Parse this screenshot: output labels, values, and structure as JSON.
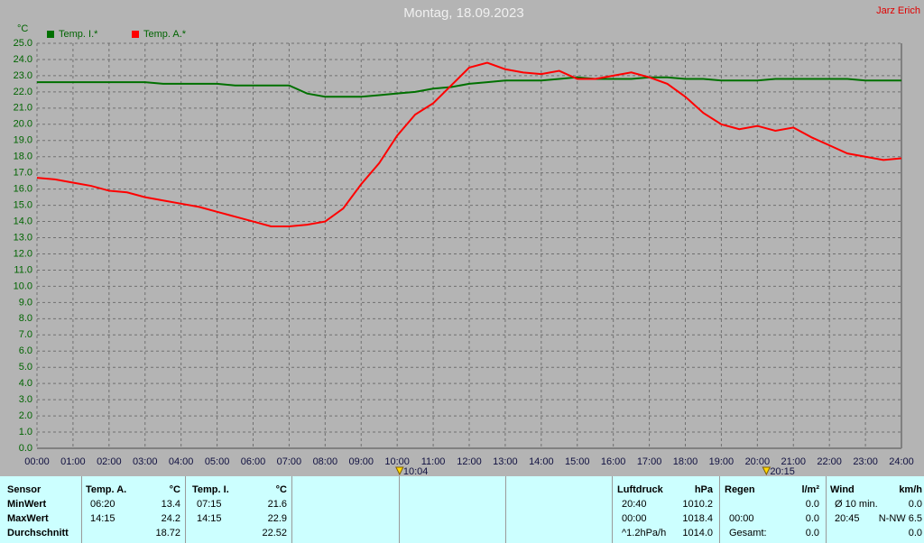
{
  "chart_data": {
    "type": "line",
    "title": "Montag, 18.09.2023",
    "author": "Jarz Erich",
    "ylabel": "°C",
    "x": [
      0,
      0.5,
      1,
      1.5,
      2,
      2.5,
      3,
      3.5,
      4,
      4.5,
      5,
      5.5,
      6,
      6.5,
      7,
      7.5,
      8,
      8.5,
      9,
      9.5,
      10,
      10.5,
      11,
      11.5,
      12,
      12.5,
      13,
      13.5,
      14,
      14.5,
      15,
      15.5,
      16,
      16.5,
      17,
      17.5,
      18,
      18.5,
      19,
      19.5,
      20,
      20.5,
      21,
      21.5,
      22,
      22.5,
      23,
      23.5,
      24
    ],
    "series": [
      {
        "name": "Temp. I.*",
        "color": "#007000",
        "values": [
          22.6,
          22.6,
          22.6,
          22.6,
          22.6,
          22.6,
          22.6,
          22.5,
          22.5,
          22.5,
          22.5,
          22.4,
          22.4,
          22.4,
          22.4,
          21.9,
          21.7,
          21.7,
          21.7,
          21.8,
          21.9,
          22.0,
          22.2,
          22.3,
          22.5,
          22.6,
          22.7,
          22.7,
          22.7,
          22.8,
          22.9,
          22.8,
          22.8,
          22.8,
          22.9,
          22.9,
          22.8,
          22.8,
          22.7,
          22.7,
          22.7,
          22.8,
          22.8,
          22.8,
          22.8,
          22.8,
          22.7,
          22.7,
          22.7
        ]
      },
      {
        "name": "Temp. A.*",
        "color": "#ff0000",
        "values": [
          16.7,
          16.6,
          16.4,
          16.2,
          15.9,
          15.8,
          15.5,
          15.3,
          15.1,
          14.9,
          14.6,
          14.3,
          14.0,
          13.7,
          13.7,
          13.8,
          14.0,
          14.8,
          16.3,
          17.6,
          19.3,
          20.6,
          21.3,
          22.4,
          23.5,
          23.8,
          23.4,
          23.2,
          23.1,
          23.3,
          22.8,
          22.8,
          23.0,
          23.2,
          22.9,
          22.5,
          21.7,
          20.7,
          20.0,
          19.7,
          19.9,
          19.6,
          19.8,
          19.2,
          18.7,
          18.2,
          18.0,
          17.8,
          17.9
        ]
      }
    ],
    "xlim": [
      0,
      24
    ],
    "ylim": [
      0,
      25
    ],
    "grid": true,
    "xticks": [
      {
        "value": 0,
        "label": "00:00"
      },
      {
        "value": 1,
        "label": "01:00"
      },
      {
        "value": 2,
        "label": "02:00"
      },
      {
        "value": 3,
        "label": "03:00"
      },
      {
        "value": 4,
        "label": "04:00"
      },
      {
        "value": 5,
        "label": "05:00"
      },
      {
        "value": 6,
        "label": "06:00"
      },
      {
        "value": 7,
        "label": "07:00"
      },
      {
        "value": 8,
        "label": "08:00"
      },
      {
        "value": 9,
        "label": "09:00"
      },
      {
        "value": 10,
        "label": "10:00"
      },
      {
        "value": 11,
        "label": "11:00"
      },
      {
        "value": 12,
        "label": "12:00"
      },
      {
        "value": 13,
        "label": "13:00"
      },
      {
        "value": 14,
        "label": "14:00"
      },
      {
        "value": 15,
        "label": "15:00"
      },
      {
        "value": 16,
        "label": "16:00"
      },
      {
        "value": 17,
        "label": "17:00"
      },
      {
        "value": 18,
        "label": "18:00"
      },
      {
        "value": 19,
        "label": "19:00"
      },
      {
        "value": 20,
        "label": "20:00"
      },
      {
        "value": 21,
        "label": "21:00"
      },
      {
        "value": 22,
        "label": "22:00"
      },
      {
        "value": 23,
        "label": "23:00"
      },
      {
        "value": 24,
        "label": "24:00"
      }
    ],
    "yticks": [
      {
        "value": 0,
        "label": "0.0"
      },
      {
        "value": 1,
        "label": "1.0"
      },
      {
        "value": 2,
        "label": "2.0"
      },
      {
        "value": 3,
        "label": "3.0"
      },
      {
        "value": 4,
        "label": "4.0"
      },
      {
        "value": 5,
        "label": "5.0"
      },
      {
        "value": 6,
        "label": "6.0"
      },
      {
        "value": 7,
        "label": "7.0"
      },
      {
        "value": 8,
        "label": "8.0"
      },
      {
        "value": 9,
        "label": "9.0"
      },
      {
        "value": 10,
        "label": "10.0"
      },
      {
        "value": 11,
        "label": "11.0"
      },
      {
        "value": 12,
        "label": "12.0"
      },
      {
        "value": 13,
        "label": "13.0"
      },
      {
        "value": 14,
        "label": "14.0"
      },
      {
        "value": 15,
        "label": "15.0"
      },
      {
        "value": 16,
        "label": "16.0"
      },
      {
        "value": 17,
        "label": "17.0"
      },
      {
        "value": 18,
        "label": "18.0"
      },
      {
        "value": 19,
        "label": "19.0"
      },
      {
        "value": 20,
        "label": "20.0"
      },
      {
        "value": 21,
        "label": "21.0"
      },
      {
        "value": 22,
        "label": "22.0"
      },
      {
        "value": 23,
        "label": "23.0"
      },
      {
        "value": 24,
        "label": "24.0"
      },
      {
        "value": 25,
        "label": "25.0"
      }
    ],
    "markers": [
      {
        "x": 10.067,
        "label": "10:04"
      },
      {
        "x": 20.25,
        "label": "20:15"
      }
    ]
  },
  "table": {
    "row_labels": [
      "Sensor",
      "MinWert",
      "MaxWert",
      "Durchschnitt"
    ],
    "columns": [
      {
        "header": "Temp. A.",
        "unit": "°C",
        "rows": [
          [
            "06:20",
            "13.4"
          ],
          [
            "14:15",
            "24.2"
          ],
          [
            null,
            "18.72"
          ]
        ]
      },
      {
        "header": "Temp. I.",
        "unit": "°C",
        "rows": [
          [
            "07:15",
            "21.6"
          ],
          [
            "14:15",
            "22.9"
          ],
          [
            null,
            "22.52"
          ]
        ]
      },
      {
        "header": "Luftdruck",
        "unit": "hPa",
        "rows": [
          [
            "20:40",
            "1010.2"
          ],
          [
            "00:00",
            "1018.4"
          ],
          [
            "^1.2hPa/h",
            "1014.0"
          ]
        ]
      },
      {
        "header": "Regen",
        "unit": "l/m²",
        "rows": [
          [
            null,
            "0.0"
          ],
          [
            "00:00",
            "0.0"
          ],
          [
            "Gesamt:",
            "0.0"
          ]
        ]
      },
      {
        "header": "Wind",
        "unit": "km/h",
        "rows": [
          [
            "Ø 10 min.",
            "0.0"
          ],
          [
            "20:45",
            "N-NW 6.5"
          ],
          [
            null,
            "0.0"
          ]
        ]
      }
    ]
  }
}
